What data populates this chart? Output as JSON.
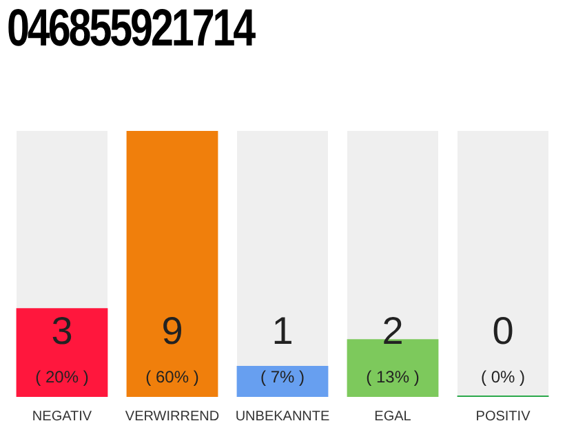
{
  "chart_data": {
    "type": "bar",
    "title": "046855921714",
    "categories": [
      "NEGATIV",
      "VERWIRREND",
      "UNBEKANNTE",
      "EGAL",
      "POSITIV"
    ],
    "values": [
      20,
      60,
      7,
      13,
      0
    ],
    "colors": [
      "#ff173d",
      "#f07f0c",
      "#679ff0",
      "#7dc95c",
      "#2aa84a"
    ],
    "value_labels": [
      "( 20% )",
      "( 60% )",
      "( 7% )",
      "( 13% )",
      "( 0% )"
    ],
    "annotations": [
      "3",
      "9",
      "1",
      "2",
      "0"
    ],
    "grid": false,
    "legend": false
  }
}
